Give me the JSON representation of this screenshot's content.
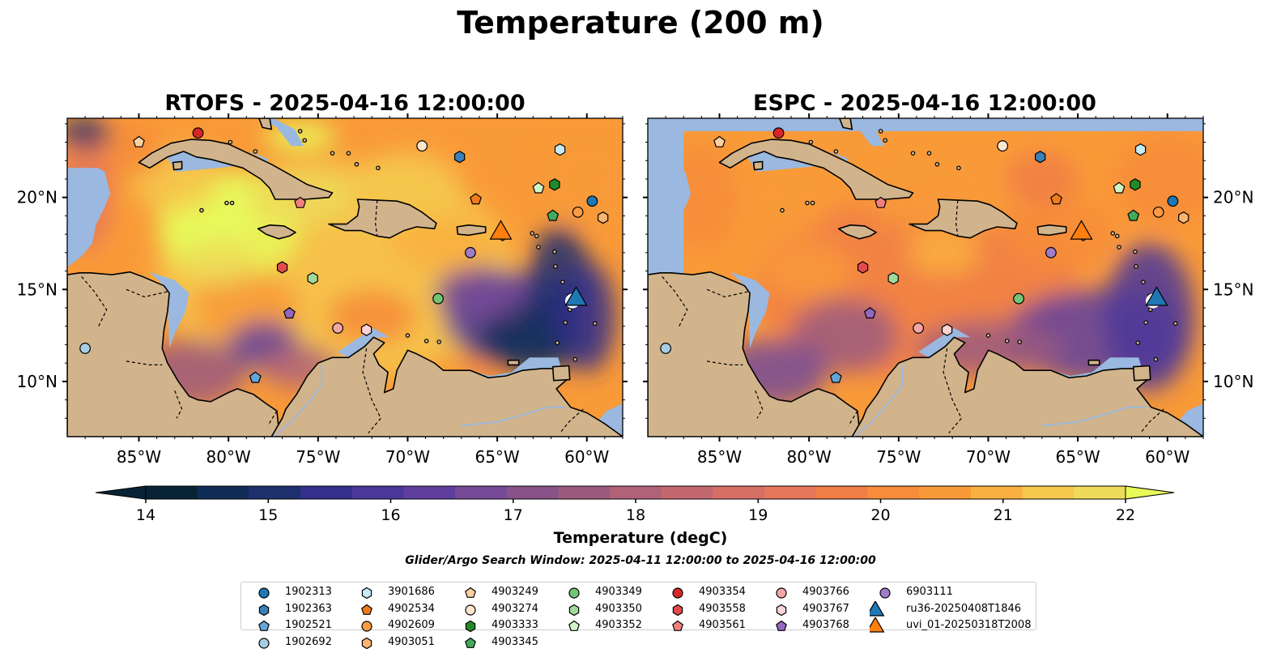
{
  "title": "Temperature (200 m)",
  "panels": [
    {
      "title": "RTOFS - 2025-04-16 12:00:00"
    },
    {
      "title": "ESPC - 2025-04-16 12:00:00"
    }
  ],
  "map": {
    "lon_range": [
      -89,
      -58
    ],
    "lat_range": [
      7,
      24.3
    ],
    "lon_ticks": [
      "85°W",
      "80°W",
      "75°W",
      "70°W",
      "65°W",
      "60°W"
    ],
    "lon_tick_values": [
      -85,
      -80,
      -75,
      -70,
      -65,
      -60
    ],
    "lat_ticks": [
      "20°N",
      "15°N",
      "10°N"
    ],
    "lat_tick_values": [
      20,
      15,
      10
    ],
    "land_color": "#d2b48c",
    "shelf_color": "#9ab8e0"
  },
  "colorbar": {
    "label": "Temperature (degC)",
    "min": 14,
    "max": 22,
    "step": 0.5,
    "ticks": [
      "14",
      "15",
      "16",
      "17",
      "18",
      "19",
      "20",
      "21",
      "22"
    ],
    "colors": [
      "#082336",
      "#0f2d57",
      "#1f306e",
      "#342f8a",
      "#4b379a",
      "#5f3f9e",
      "#754a96",
      "#885389",
      "#9b5b7e",
      "#b06278",
      "#c4686f",
      "#d66f66",
      "#e6775b",
      "#f07e46",
      "#f78c3a",
      "#f99a38",
      "#fab03f",
      "#f6c84c",
      "#eedb59",
      "#e7fa5a"
    ]
  },
  "search_window": "Glider/Argo Search Window: 2025-04-11 12:00:00 to 2025-04-16 12:00:00",
  "floats": [
    {
      "id": "1902313",
      "marker": "circle",
      "color": "#1f77b4",
      "lon": -59.7,
      "lat": 19.8
    },
    {
      "id": "1902363",
      "marker": "hexagon",
      "color": "#3a80b9",
      "lon": -67.1,
      "lat": 22.2
    },
    {
      "id": "1902521",
      "marker": "pentagon",
      "color": "#64a6d8",
      "lon": -78.5,
      "lat": 10.2
    },
    {
      "id": "1902692",
      "marker": "circle",
      "color": "#a6cee3",
      "lon": -88.0,
      "lat": 11.8
    },
    {
      "id": "3901686",
      "marker": "hexagon",
      "color": "#c6eaf7",
      "lon": -61.5,
      "lat": 22.6
    },
    {
      "id": "4902534",
      "marker": "pentagon",
      "color": "#ef7c1a",
      "lon": -66.2,
      "lat": 19.9
    },
    {
      "id": "4902609",
      "marker": "circle",
      "color": "#fd9a43",
      "lon": -60.5,
      "lat": 19.2
    },
    {
      "id": "4903051",
      "marker": "hexagon",
      "color": "#fcb473",
      "lon": -59.1,
      "lat": 18.9
    },
    {
      "id": "4903249",
      "marker": "pentagon",
      "color": "#fdd0a2",
      "lon": -85.0,
      "lat": 23.0
    },
    {
      "id": "4903274",
      "marker": "circle",
      "color": "#fee6ce",
      "lon": -69.2,
      "lat": 22.8
    },
    {
      "id": "4903333",
      "marker": "hexagon",
      "color": "#238b24",
      "lon": -61.8,
      "lat": 20.7
    },
    {
      "id": "4903345",
      "marker": "pentagon",
      "color": "#41ab5d",
      "lon": -61.9,
      "lat": 19.0
    },
    {
      "id": "4903349",
      "marker": "circle",
      "color": "#74c476",
      "lon": -68.3,
      "lat": 14.5
    },
    {
      "id": "4903350",
      "marker": "hexagon",
      "color": "#a1d99b",
      "lon": -75.3,
      "lat": 15.6
    },
    {
      "id": "4903352",
      "marker": "pentagon",
      "color": "#d2f5c8",
      "lon": -62.7,
      "lat": 20.5
    },
    {
      "id": "4903354",
      "marker": "circle",
      "color": "#d62728",
      "lon": -81.7,
      "lat": 23.5
    },
    {
      "id": "4903558",
      "marker": "hexagon",
      "color": "#e34a4a",
      "lon": -77.0,
      "lat": 16.2
    },
    {
      "id": "4903561",
      "marker": "pentagon",
      "color": "#f08080",
      "lon": -76.0,
      "lat": 19.7
    },
    {
      "id": "4903766",
      "marker": "circle",
      "color": "#f4a6a6",
      "lon": -73.9,
      "lat": 12.9
    },
    {
      "id": "4903767",
      "marker": "hexagon",
      "color": "#fcd2d2",
      "lon": -72.3,
      "lat": 12.8
    },
    {
      "id": "4903768",
      "marker": "pentagon",
      "color": "#9467bd",
      "lon": -76.6,
      "lat": 13.7
    },
    {
      "id": "6903111",
      "marker": "circle",
      "color": "#a07cc8",
      "lon": -66.5,
      "lat": 17.0
    }
  ],
  "gliders": [
    {
      "id": "ru36-20250408T1846",
      "marker": "triangle",
      "color": "#1f77b4",
      "lon": -60.6,
      "lat": 14.6
    },
    {
      "id": "uvi_01-20250318T2008",
      "marker": "triangle",
      "color": "#ff7f0e",
      "lon": -64.8,
      "lat": 18.2
    }
  ]
}
